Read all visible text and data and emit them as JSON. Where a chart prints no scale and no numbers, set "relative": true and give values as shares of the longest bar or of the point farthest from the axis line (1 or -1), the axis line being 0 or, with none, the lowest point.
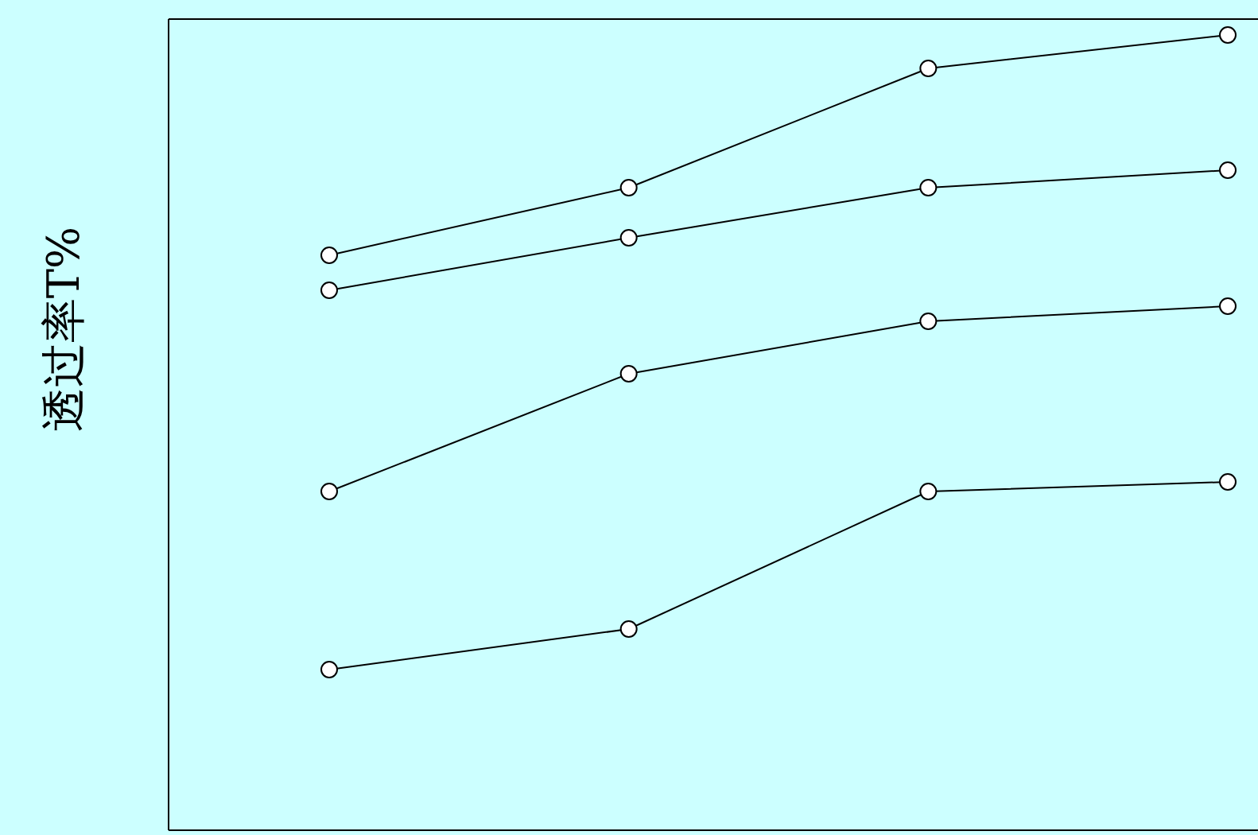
{
  "chart_data": {
    "type": "line",
    "ylabel": "透过率T%",
    "relative": true,
    "marker": "circle",
    "line_style": "solid",
    "categories": [
      null,
      null,
      null,
      null
    ],
    "series": [
      {
        "color": "#000000",
        "values": [
          0.723,
          0.808,
          0.958,
          1
        ]
      },
      {
        "color": "#000000",
        "values": [
          0.679,
          0.745,
          0.808,
          0.83
        ]
      },
      {
        "color": "#000000",
        "values": [
          0.426,
          0.574,
          0.64,
          0.659
        ]
      },
      {
        "color": "#000000",
        "values": [
          0.202,
          0.253,
          0.426,
          0.438
        ]
      }
    ]
  }
}
